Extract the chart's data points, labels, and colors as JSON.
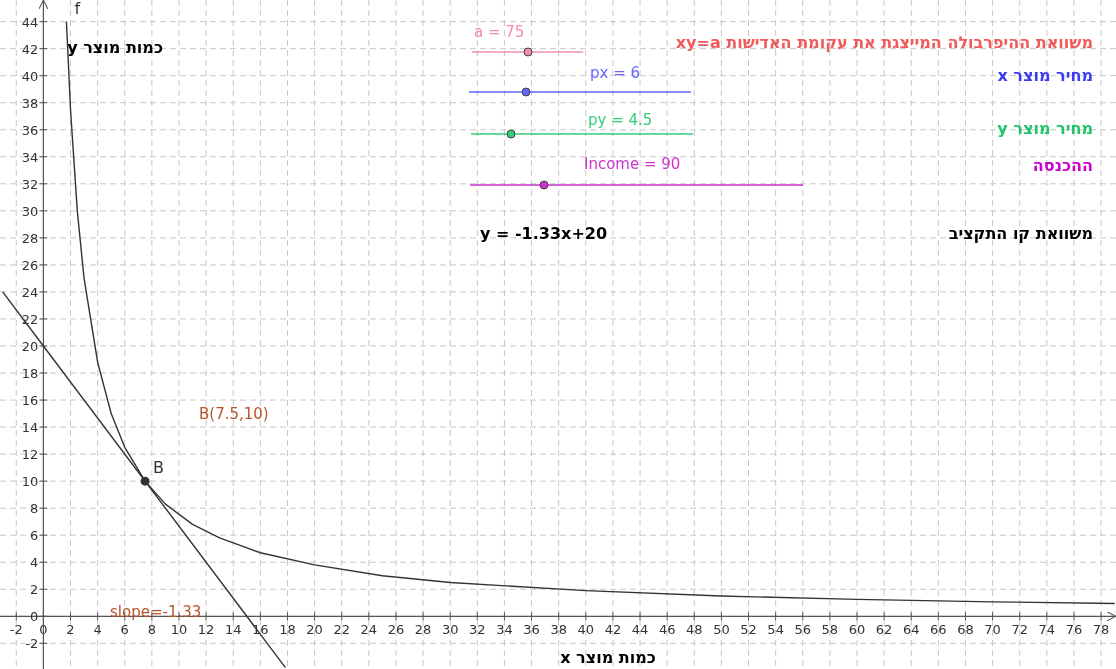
{
  "chart_data": {
    "type": "line",
    "xlabel": "כמות מוצר x",
    "ylabel": "כמות מוצר y",
    "xlim": [
      -3.2,
      79.1
    ],
    "ylim": [
      -3.9,
      45.6
    ],
    "xticks": [
      -2,
      0,
      2,
      4,
      6,
      8,
      10,
      12,
      14,
      16,
      18,
      20,
      22,
      24,
      26,
      28,
      30,
      32,
      34,
      36,
      38,
      40,
      42,
      44,
      46,
      48,
      50,
      52,
      54,
      56,
      58,
      60,
      62,
      64,
      66,
      68,
      70,
      72,
      74,
      76,
      78
    ],
    "yticks": [
      -2,
      0,
      2,
      4,
      6,
      8,
      10,
      12,
      14,
      16,
      18,
      20,
      22,
      24,
      26,
      28,
      30,
      32,
      34,
      36,
      38,
      40,
      42,
      44
    ],
    "grid": true,
    "series": [
      {
        "name": "f",
        "type": "line",
        "color": "#333333",
        "x": [
          1.7,
          2,
          2.5,
          3,
          4,
          5,
          6,
          7.5,
          9,
          11,
          13,
          16,
          20,
          25,
          30,
          40,
          50,
          60,
          70,
          79
        ],
        "values": [
          44,
          37.5,
          30,
          25,
          18.8,
          15,
          12.5,
          10,
          8.3,
          6.8,
          5.8,
          4.7,
          3.8,
          3,
          2.5,
          1.9,
          1.5,
          1.25,
          1.07,
          0.95
        ]
      },
      {
        "type": "line",
        "color": "#333333",
        "x": [
          -3,
          0,
          15,
          17.85
        ],
        "values": [
          24,
          20,
          0,
          -3.8
        ]
      },
      {
        "name": "B",
        "type": "scatter",
        "marker": "circle",
        "color": "#333333",
        "x": [
          7.5
        ],
        "values": [
          10
        ]
      }
    ],
    "annotations": [
      "משוואת ההיפרבולה המייצגת את עקומת האדישות xy=a",
      "a = 75",
      "מחיר מוצר x",
      "px = 6",
      "מחיר מוצר y",
      "py = 4.5",
      "ההכנסה",
      "Income = 90",
      "משוואת קו התקציב",
      "y = -1.33x+20",
      "B(7.5,10)",
      "slope=-1.33"
    ]
  }
}
